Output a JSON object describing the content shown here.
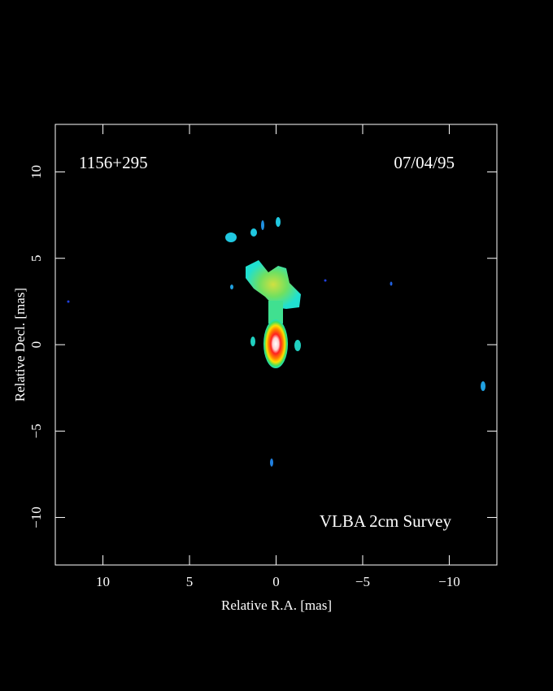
{
  "chart_data": {
    "type": "image",
    "source": "1156+295",
    "date": "07/04/95",
    "survey": "VLBA 2cm Survey",
    "xlabel": "Relative R.A. [mas]",
    "ylabel": "Relative Decl. [mas]",
    "xlim": [
      12.75,
      -12.75
    ],
    "ylim": [
      -12.75,
      12.75
    ],
    "xticks": [
      10,
      5,
      0,
      {
        "value": -5,
        "label": "−5"
      },
      {
        "value": -10,
        "label": "−10"
      }
    ],
    "yticks": [
      {
        "value": -10,
        "label": "−10"
      },
      {
        "value": -5,
        "label": "−5"
      },
      0,
      5,
      10
    ]
  }
}
